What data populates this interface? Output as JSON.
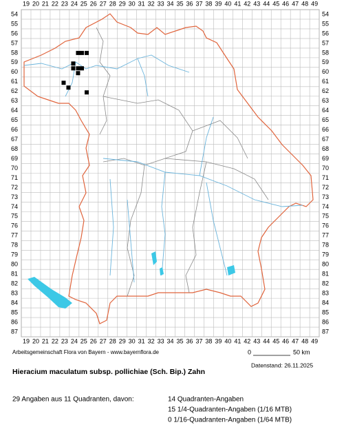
{
  "map": {
    "columns": [
      19,
      20,
      21,
      22,
      23,
      24,
      25,
      26,
      27,
      28,
      29,
      30,
      31,
      32,
      33,
      34,
      35,
      36,
      37,
      38,
      39,
      40,
      41,
      42,
      43,
      44,
      45,
      46,
      47,
      48,
      49
    ],
    "rows": [
      54,
      55,
      56,
      57,
      58,
      59,
      60,
      61,
      62,
      63,
      64,
      65,
      66,
      67,
      68,
      69,
      70,
      71,
      72,
      73,
      74,
      75,
      76,
      77,
      78,
      79,
      80,
      81,
      82,
      83,
      84,
      85,
      86,
      87
    ],
    "records": [
      {
        "x": 24.4,
        "y": 58.0
      },
      {
        "x": 24.8,
        "y": 58.0
      },
      {
        "x": 25.3,
        "y": 58.0
      },
      {
        "x": 23.9,
        "y": 59.1
      },
      {
        "x": 23.9,
        "y": 59.6
      },
      {
        "x": 24.4,
        "y": 59.6
      },
      {
        "x": 24.8,
        "y": 59.6
      },
      {
        "x": 24.4,
        "y": 60.1
      },
      {
        "x": 22.9,
        "y": 61.1
      },
      {
        "x": 23.4,
        "y": 61.6
      },
      {
        "x": 25.3,
        "y": 62.1
      }
    ]
  },
  "footer": {
    "credit": "Arbeitsgemeinschaft Flora von Bayern - www.bayernflora.de",
    "scale_start": "0",
    "scale_end": "50 km",
    "date": "Datenstand: 26.11.2025",
    "title": "Hieracium maculatum subsp. pollichiae (Sch. Bip.) Zahn",
    "summary": "29 Angaben aus 11 Quadranten, davon:",
    "details": [
      "14 Quadranten-Angaben",
      "15 1/4-Quadranten-Angaben (1/16 MTB)",
      "0 1/16-Quadranten-Angaben (1/64 MTB)"
    ]
  }
}
